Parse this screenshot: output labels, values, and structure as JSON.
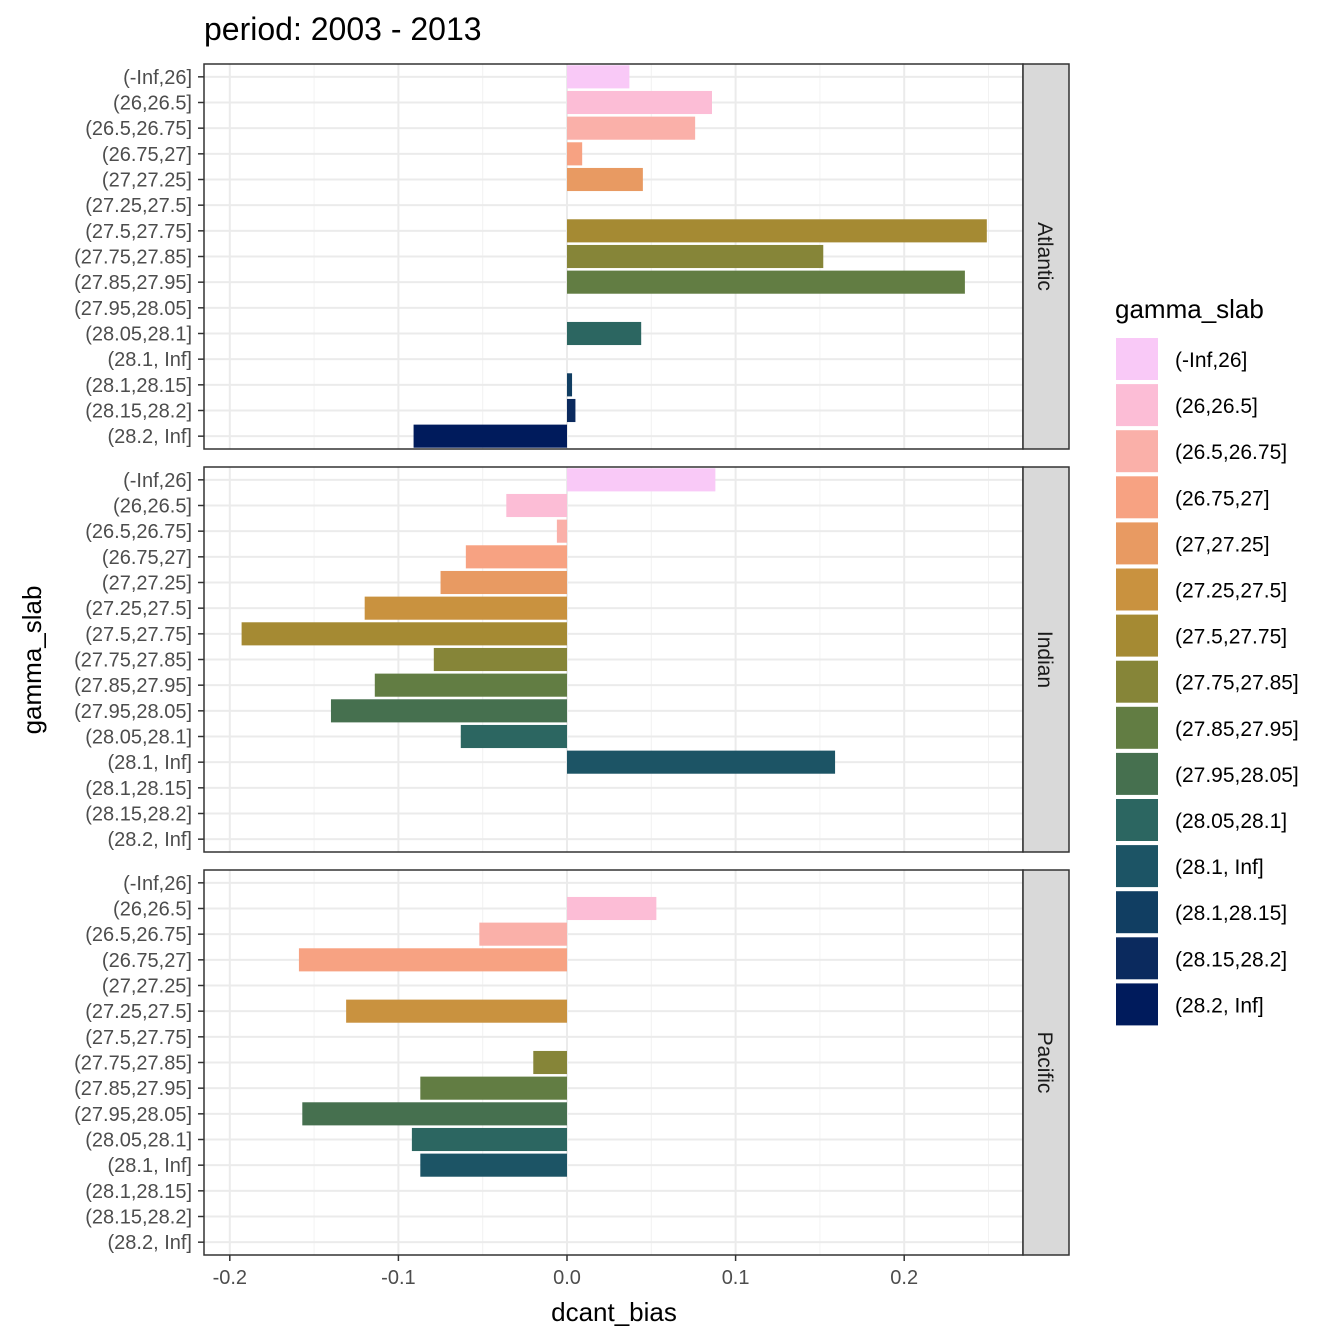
{
  "chart_data": {
    "type": "bar",
    "orientation": "horizontal",
    "title": "period: 2003 - 2013",
    "xlabel": "dcant_bias",
    "ylabel": "gamma_slab",
    "xlim": [
      -0.2,
      0.27
    ],
    "x_ticks": [
      -0.2,
      -0.1,
      0.0,
      0.1,
      0.2
    ],
    "x_tick_labels": [
      "-0.2",
      "-0.1",
      "0.0",
      "0.1",
      "0.2"
    ],
    "categories": [
      "(-Inf,26]",
      "(26,26.5]",
      "(26.5,26.75]",
      "(26.75,27]",
      "(27,27.25]",
      "(27.25,27.5]",
      "(27.5,27.75]",
      "(27.75,27.85]",
      "(27.85,27.95]",
      "(27.95,28.05]",
      "(28.05,28.1]",
      "(28.1, Inf]",
      "(28.1,28.15]",
      "(28.15,28.2]",
      "(28.2, Inf]"
    ],
    "colors": [
      "#F9C9F7",
      "#FCBDD6",
      "#FAB0A9",
      "#F7A282",
      "#E89A62",
      "#C9923F",
      "#A58A33",
      "#868538",
      "#627D43",
      "#46704F",
      "#2C6661",
      "#1C5465",
      "#113E62",
      "#0B2A5E",
      "#001B5C"
    ],
    "grid": true,
    "legend": {
      "title": "gamma_slab",
      "position": "right"
    },
    "panels": [
      {
        "name": "Atlantic",
        "values": [
          0.037,
          0.086,
          0.076,
          0.009,
          0.045,
          null,
          0.249,
          0.152,
          0.236,
          null,
          0.044,
          null,
          0.003,
          0.005,
          -0.091
        ]
      },
      {
        "name": "Indian",
        "values": [
          0.088,
          -0.036,
          -0.006,
          -0.06,
          -0.075,
          -0.12,
          -0.193,
          -0.079,
          -0.114,
          -0.14,
          -0.063,
          0.159,
          null,
          null,
          null
        ]
      },
      {
        "name": "Pacific",
        "values": [
          null,
          0.053,
          -0.052,
          -0.159,
          null,
          -0.131,
          null,
          -0.02,
          -0.087,
          -0.157,
          -0.092,
          -0.087,
          null,
          null,
          null
        ]
      }
    ]
  }
}
